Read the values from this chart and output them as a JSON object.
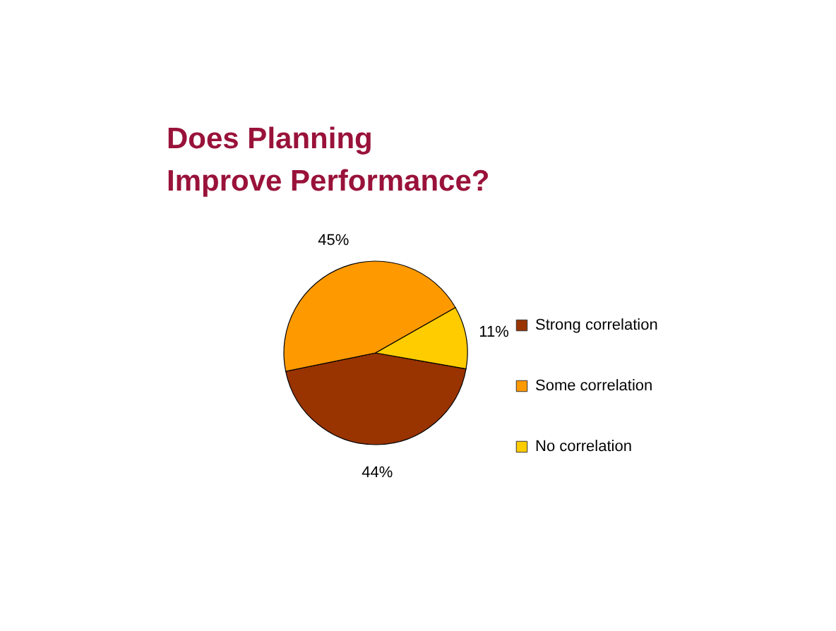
{
  "chart_data": {
    "type": "pie",
    "title": "Does Planning Improve Performance?",
    "categories": [
      "Strong correlation",
      "Some correlation",
      "No correlation"
    ],
    "values": [
      44,
      45,
      11
    ],
    "colors": [
      "#993300",
      "#ff9900",
      "#ffcc00"
    ],
    "value_labels": [
      "44%",
      "45%",
      "11%"
    ],
    "legend": "right"
  }
}
